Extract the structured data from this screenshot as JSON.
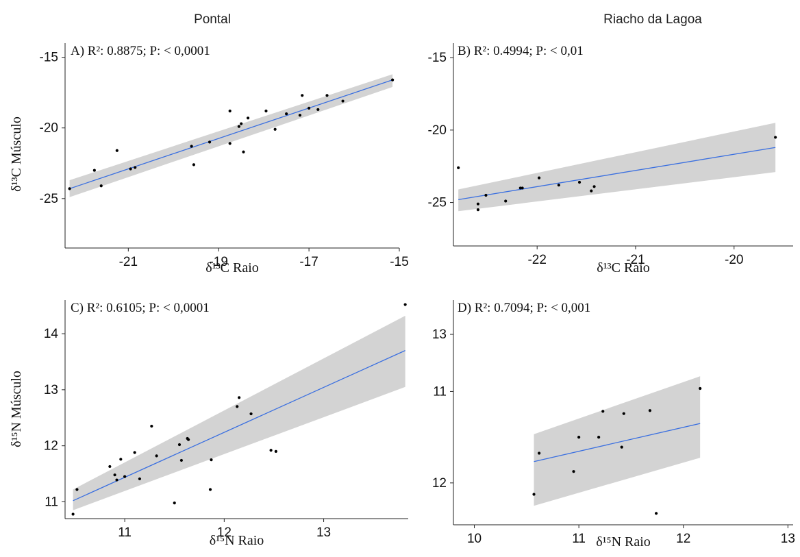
{
  "columns": {
    "left": "Pontal",
    "right": "Riacho da Lagoa"
  },
  "colors": {
    "fit_line": "#3a6fe0",
    "confidence_band": "#d3d3d3",
    "points": "#000000",
    "axis": "#222222"
  },
  "chart_data": [
    {
      "type": "scatter",
      "panel": "A",
      "annotation": "A) R²: 0.8875; P: < 0,0001",
      "xlabel": "δ¹³C Raio",
      "ylabel": "δ¹³C Músculo",
      "xlim": [
        -22.4,
        -15
      ],
      "ylim": [
        -28.5,
        -14
      ],
      "xticks": [
        "-21",
        "-19",
        "-17",
        "-15"
      ],
      "yticks": [
        "-15",
        "-20",
        "-25"
      ],
      "x": [
        -22.3,
        -21.75,
        -21.6,
        -21.25,
        -20.95,
        -20.85,
        -19.6,
        -19.55,
        -19.2,
        -18.75,
        -18.75,
        -18.55,
        -18.45,
        -18.5,
        -18.35,
        -17.95,
        -17.75,
        -17.5,
        -17.2,
        -17.15,
        -17.0,
        -16.8,
        -16.6,
        -16.25,
        -15.15
      ],
      "y": [
        -24.3,
        -23.0,
        -24.1,
        -21.6,
        -22.9,
        -22.8,
        -21.3,
        -22.6,
        -21.0,
        -21.1,
        -18.8,
        -19.9,
        -21.7,
        -19.7,
        -19.3,
        -18.8,
        -20.1,
        -19.0,
        -19.1,
        -17.7,
        -18.6,
        -18.7,
        -17.7,
        -18.1,
        -16.6
      ],
      "fit": {
        "x": [
          -22.3,
          -15.15
        ],
        "y": [
          -24.3,
          -16.6
        ],
        "band_lower": [
          -24.9,
          -17.1
        ],
        "band_upper": [
          -23.7,
          -16.2
        ]
      }
    },
    {
      "type": "scatter",
      "panel": "B",
      "annotation": "B) R²:  0.4994; P: < 0,01",
      "xlabel": "δ¹³C Raio",
      "ylabel": "",
      "xlim": [
        -22.85,
        -19.4
      ],
      "ylim": [
        -28,
        -14
      ],
      "xticks": [
        "-22",
        "-21",
        "-20"
      ],
      "yticks": [
        "-15",
        "-20",
        "-25"
      ],
      "x": [
        -22.8,
        -22.6,
        -22.6,
        -22.52,
        -22.32,
        -22.17,
        -22.15,
        -21.98,
        -21.78,
        -21.57,
        -21.45,
        -21.42,
        -19.58
      ],
      "y": [
        -22.6,
        -25.1,
        -25.5,
        -24.5,
        -24.9,
        -24.0,
        -24.0,
        -23.3,
        -23.8,
        -23.6,
        -24.2,
        -23.9,
        -20.5
      ],
      "fit": {
        "x": [
          -22.8,
          -19.58
        ],
        "y": [
          -24.8,
          -21.2
        ],
        "band_lower": [
          -25.6,
          -22.9
        ],
        "band_upper": [
          -24.1,
          -19.5
        ]
      }
    },
    {
      "type": "scatter",
      "panel": "C",
      "annotation": "C) R²:  0.6105; P: < 0,0001",
      "xlabel": "δ¹⁵N Raio",
      "ylabel": "δ¹⁵N Músculo",
      "xlim": [
        10.4,
        13.85
      ],
      "ylim": [
        10.7,
        14.6
      ],
      "xticks": [
        "11",
        "12",
        "13"
      ],
      "yticks": [
        "14",
        "13",
        "12",
        "11"
      ],
      "x": [
        10.48,
        10.52,
        10.85,
        10.9,
        10.92,
        10.96,
        11.0,
        11.1,
        11.15,
        11.27,
        11.32,
        11.5,
        11.55,
        11.57,
        11.63,
        11.64,
        11.86,
        11.87,
        12.13,
        12.15,
        12.27,
        12.47,
        12.52,
        13.82
      ],
      "y": [
        10.78,
        11.22,
        11.63,
        11.48,
        11.39,
        11.76,
        11.45,
        11.88,
        11.41,
        12.35,
        11.82,
        10.98,
        12.02,
        11.74,
        12.13,
        12.11,
        11.22,
        11.75,
        12.7,
        12.86,
        12.57,
        11.92,
        11.9,
        14.52
      ],
      "fit": {
        "x": [
          10.48,
          13.82
        ],
        "y": [
          11.02,
          13.7
        ],
        "band_lower": [
          10.85,
          13.05
        ],
        "band_upper": [
          11.22,
          14.32
        ]
      }
    },
    {
      "type": "scatter",
      "panel": "D",
      "annotation": "D) R²:  0.7094; P: < 0,001",
      "xlabel": "δ¹⁵N Raio",
      "ylabel": "",
      "xlim": [
        9.8,
        13.05
      ],
      "ylim": [
        12.75,
        9.8
      ],
      "xticks": [
        "10",
        "11",
        "12",
        "13"
      ],
      "yticks": [
        "13",
        "11",
        "12"
      ],
      "x": [
        10.57,
        10.62,
        10.95,
        11.0,
        11.19,
        11.23,
        11.41,
        11.43,
        11.68,
        11.74,
        12.16
      ],
      "y": [
        12.35,
        11.81,
        12.05,
        11.6,
        11.6,
        11.26,
        11.73,
        11.29,
        11.25,
        12.6,
        10.96
      ],
      "fit": {
        "x": [
          10.57,
          12.16
        ],
        "y": [
          11.92,
          11.42
        ],
        "band_lower": [
          11.56,
          10.8
        ],
        "band_upper": [
          12.5,
          11.87
        ]
      }
    }
  ]
}
